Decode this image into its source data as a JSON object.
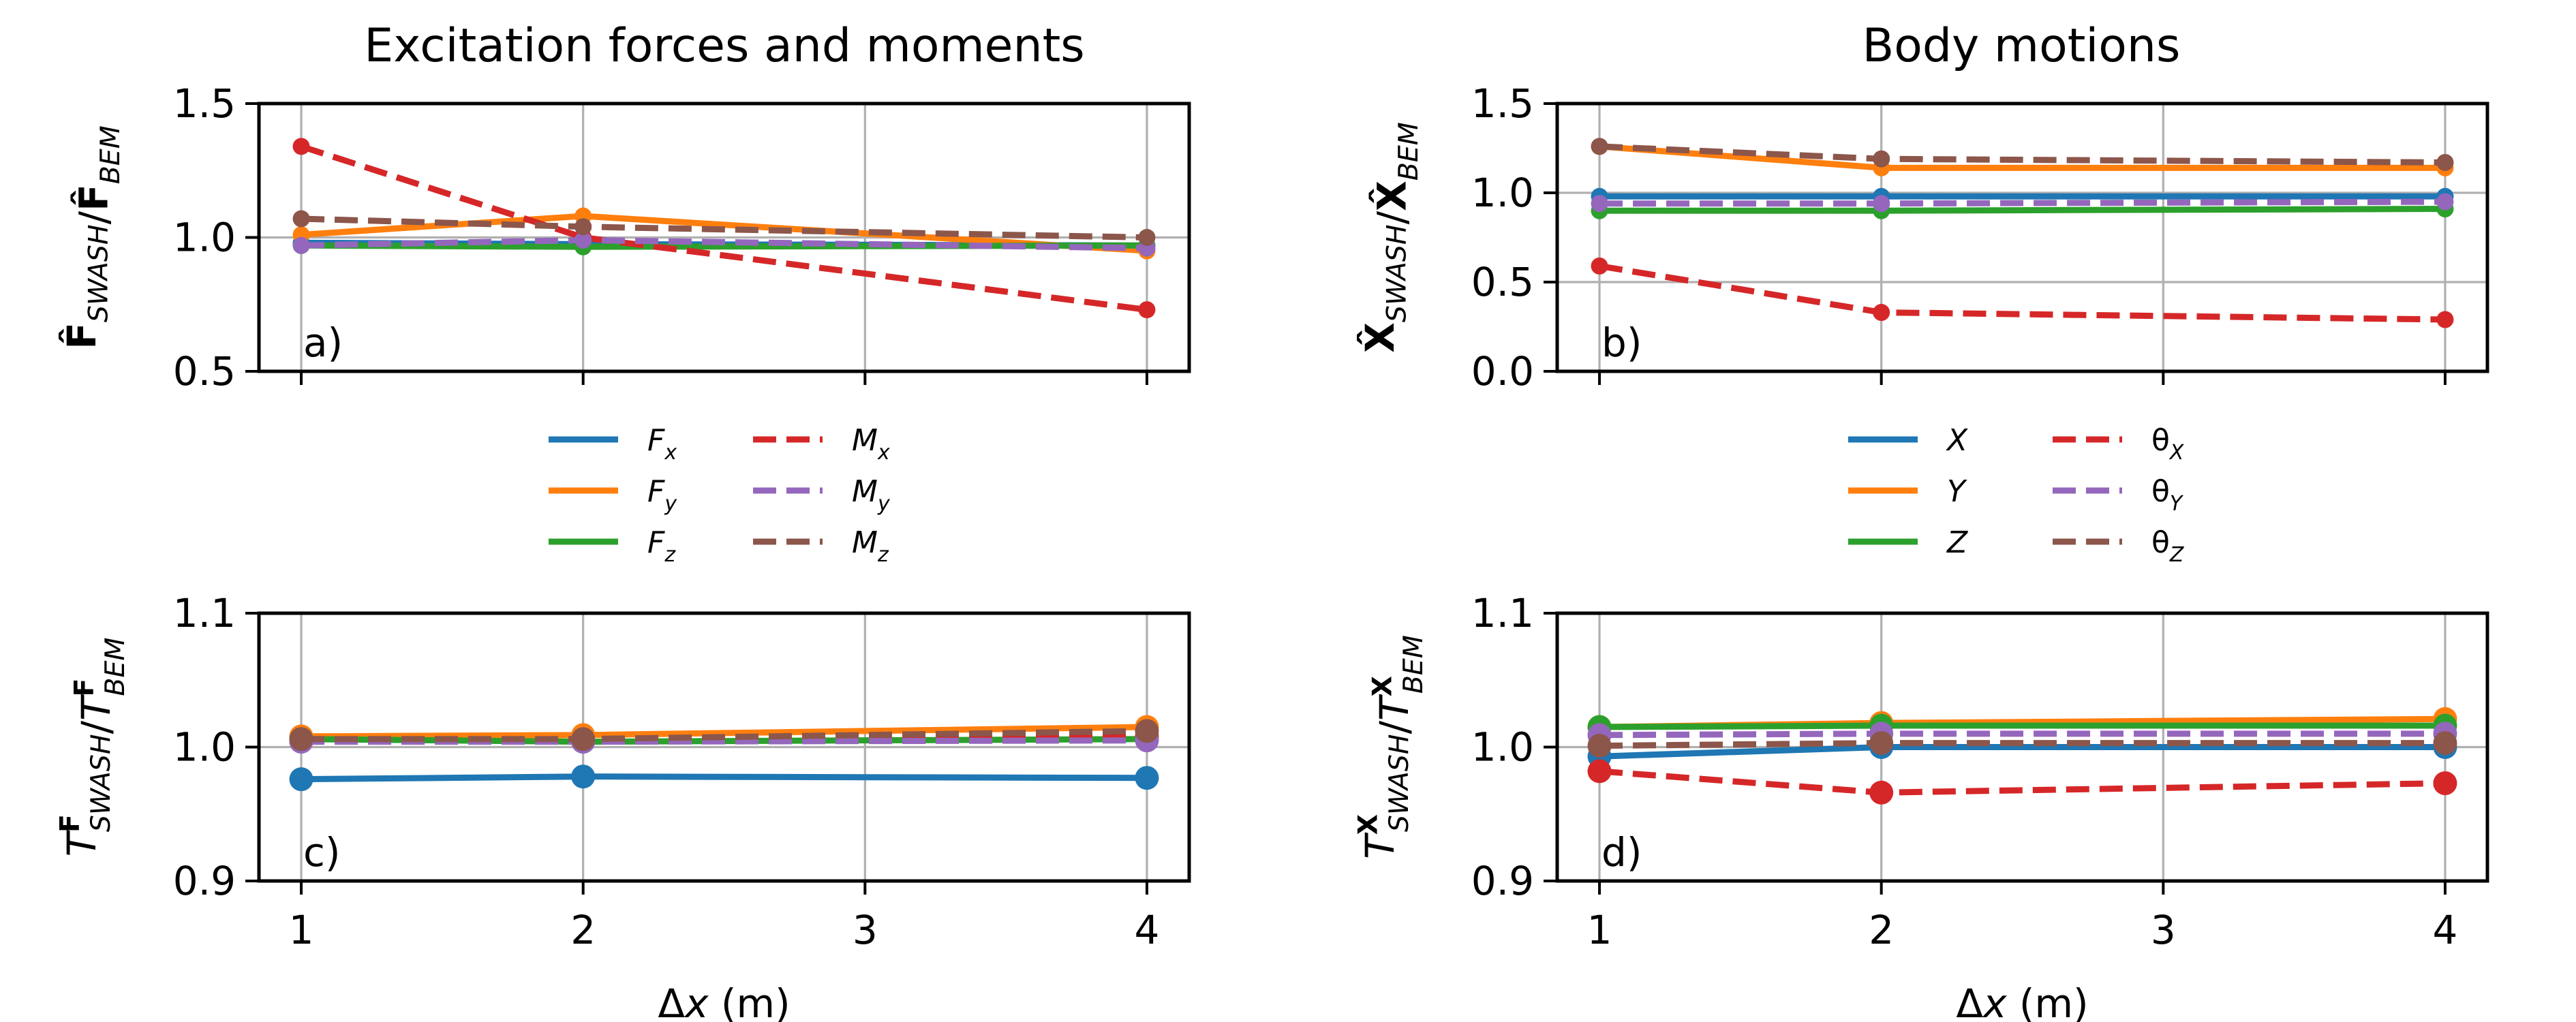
{
  "figure": {
    "col_titles": [
      "Excitation forces and moments",
      "Body motions"
    ]
  },
  "chart_data": [
    {
      "type": "line",
      "panel": "a)",
      "title": "Excitation forces and moments",
      "ylabel": "F̂_SWASH/F̂_BEM",
      "xlabel": "",
      "ylim": [
        0.5,
        1.5
      ],
      "xlim": [
        0.85,
        4.15
      ],
      "xticks": [
        1,
        2,
        3,
        4
      ],
      "yticks": [
        "0.5",
        "1.0",
        "1.5"
      ],
      "show_xticklabels": false,
      "grid": true,
      "x": [
        1,
        2,
        4
      ],
      "series": [
        {
          "name": "F_x",
          "color": "#1f77b4",
          "dashed": false,
          "marker_size": 5,
          "values": [
            0.98,
            0.975,
            0.97
          ]
        },
        {
          "name": "F_y",
          "color": "#ff7f0e",
          "dashed": false,
          "marker_size": 5,
          "values": [
            1.01,
            1.08,
            0.95
          ]
        },
        {
          "name": "F_z",
          "color": "#2ca02c",
          "dashed": false,
          "marker_size": 5,
          "values": [
            0.97,
            0.965,
            0.97
          ]
        },
        {
          "name": "M_x",
          "color": "#d62728",
          "dashed": true,
          "marker_size": 5,
          "values": [
            1.34,
            1.0,
            0.73
          ]
        },
        {
          "name": "M_y",
          "color": "#9467bd",
          "dashed": true,
          "marker_size": 5,
          "values": [
            0.97,
            0.99,
            0.96
          ]
        },
        {
          "name": "M_z",
          "color": "#8c564b",
          "dashed": true,
          "marker_size": 5,
          "values": [
            1.07,
            1.04,
            1.0
          ]
        }
      ]
    },
    {
      "type": "line",
      "panel": "b)",
      "title": "Body motions",
      "ylabel": "X̂_SWASH/X̂_BEM",
      "xlabel": "",
      "ylim": [
        0.0,
        1.5
      ],
      "xlim": [
        0.85,
        4.15
      ],
      "xticks": [
        1,
        2,
        3,
        4
      ],
      "yticks": [
        "0.0",
        "0.5",
        "1.0",
        "1.5"
      ],
      "show_xticklabels": false,
      "grid": true,
      "x": [
        1,
        2,
        4
      ],
      "series": [
        {
          "name": "X",
          "color": "#1f77b4",
          "dashed": false,
          "marker_size": 5,
          "values": [
            0.98,
            0.98,
            0.98
          ]
        },
        {
          "name": "Y",
          "color": "#ff7f0e",
          "dashed": false,
          "marker_size": 5,
          "values": [
            1.26,
            1.14,
            1.14
          ]
        },
        {
          "name": "Z",
          "color": "#2ca02c",
          "dashed": false,
          "marker_size": 5,
          "values": [
            0.9,
            0.9,
            0.91
          ]
        },
        {
          "name": "θ_X",
          "color": "#d62728",
          "dashed": true,
          "marker_size": 5,
          "values": [
            0.59,
            0.33,
            0.29
          ]
        },
        {
          "name": "θ_Y",
          "color": "#9467bd",
          "dashed": true,
          "marker_size": 5,
          "values": [
            0.94,
            0.94,
            0.95
          ]
        },
        {
          "name": "θ_Z",
          "color": "#8c564b",
          "dashed": true,
          "marker_size": 5,
          "values": [
            1.26,
            1.19,
            1.17
          ]
        }
      ]
    },
    {
      "type": "line",
      "panel": "c)",
      "title": "",
      "ylabel": "T^F_SWASH/T^F_BEM",
      "xlabel": "Δx (m)",
      "ylim": [
        0.9,
        1.1
      ],
      "xlim": [
        0.85,
        4.15
      ],
      "xticks": [
        1,
        2,
        3,
        4
      ],
      "yticks": [
        "0.9",
        "1.0",
        "1.1"
      ],
      "xticklabels": [
        "1",
        "2",
        "3",
        "4"
      ],
      "show_xticklabels": true,
      "grid": true,
      "x": [
        1,
        2,
        4
      ],
      "series": [
        {
          "name": "F_x",
          "color": "#1f77b4",
          "dashed": false,
          "marker_size": 7,
          "values": [
            0.976,
            0.978,
            0.977
          ]
        },
        {
          "name": "F_y",
          "color": "#ff7f0e",
          "dashed": false,
          "marker_size": 7,
          "values": [
            1.008,
            1.009,
            1.015
          ]
        },
        {
          "name": "F_z",
          "color": "#2ca02c",
          "dashed": false,
          "marker_size": 7,
          "values": [
            1.006,
            1.004,
            1.006
          ]
        },
        {
          "name": "M_x",
          "color": "#d62728",
          "dashed": true,
          "marker_size": 7,
          "values": [
            1.005,
            1.005,
            1.008
          ]
        },
        {
          "name": "M_y",
          "color": "#9467bd",
          "dashed": true,
          "marker_size": 7,
          "values": [
            1.004,
            1.004,
            1.005
          ]
        },
        {
          "name": "M_z",
          "color": "#8c564b",
          "dashed": true,
          "marker_size": 7,
          "values": [
            1.006,
            1.006,
            1.012
          ]
        }
      ]
    },
    {
      "type": "line",
      "panel": "d)",
      "title": "",
      "ylabel": "T^X_SWASH/T^X_BEM",
      "xlabel": "Δx (m)",
      "ylim": [
        0.9,
        1.1
      ],
      "xlim": [
        0.85,
        4.15
      ],
      "xticks": [
        1,
        2,
        3,
        4
      ],
      "yticks": [
        "0.9",
        "1.0",
        "1.1"
      ],
      "xticklabels": [
        "1",
        "2",
        "3",
        "4"
      ],
      "show_xticklabels": true,
      "grid": true,
      "x": [
        1,
        2,
        4
      ],
      "series": [
        {
          "name": "X",
          "color": "#1f77b4",
          "dashed": false,
          "marker_size": 7,
          "values": [
            0.993,
            1.0,
            1.0
          ]
        },
        {
          "name": "Y",
          "color": "#ff7f0e",
          "dashed": false,
          "marker_size": 7,
          "values": [
            1.015,
            1.018,
            1.021
          ]
        },
        {
          "name": "Z",
          "color": "#2ca02c",
          "dashed": false,
          "marker_size": 7,
          "values": [
            1.015,
            1.016,
            1.016
          ]
        },
        {
          "name": "θ_X",
          "color": "#d62728",
          "dashed": true,
          "marker_size": 7,
          "values": [
            0.982,
            0.966,
            0.973
          ]
        },
        {
          "name": "θ_Y",
          "color": "#9467bd",
          "dashed": true,
          "marker_size": 7,
          "values": [
            1.009,
            1.01,
            1.01
          ]
        },
        {
          "name": "θ_Z",
          "color": "#8c564b",
          "dashed": true,
          "marker_size": 7,
          "values": [
            1.001,
            1.003,
            1.003
          ]
        }
      ]
    }
  ],
  "legends": [
    {
      "panel": "a)",
      "entries": [
        {
          "label": "F_x",
          "color": "#1f77b4",
          "dashed": false
        },
        {
          "label": "F_y",
          "color": "#ff7f0e",
          "dashed": false
        },
        {
          "label": "F_z",
          "color": "#2ca02c",
          "dashed": false
        },
        {
          "label": "M_x",
          "color": "#d62728",
          "dashed": true
        },
        {
          "label": "M_y",
          "color": "#9467bd",
          "dashed": true
        },
        {
          "label": "M_z",
          "color": "#8c564b",
          "dashed": true
        }
      ]
    },
    {
      "panel": "b)",
      "entries": [
        {
          "label": "X",
          "color": "#1f77b4",
          "dashed": false
        },
        {
          "label": "Y",
          "color": "#ff7f0e",
          "dashed": false
        },
        {
          "label": "Z",
          "color": "#2ca02c",
          "dashed": false
        },
        {
          "label": "θ_X",
          "color": "#d62728",
          "dashed": true
        },
        {
          "label": "θ_Y",
          "color": "#9467bd",
          "dashed": true
        },
        {
          "label": "θ_Z",
          "color": "#8c564b",
          "dashed": true
        }
      ]
    }
  ]
}
